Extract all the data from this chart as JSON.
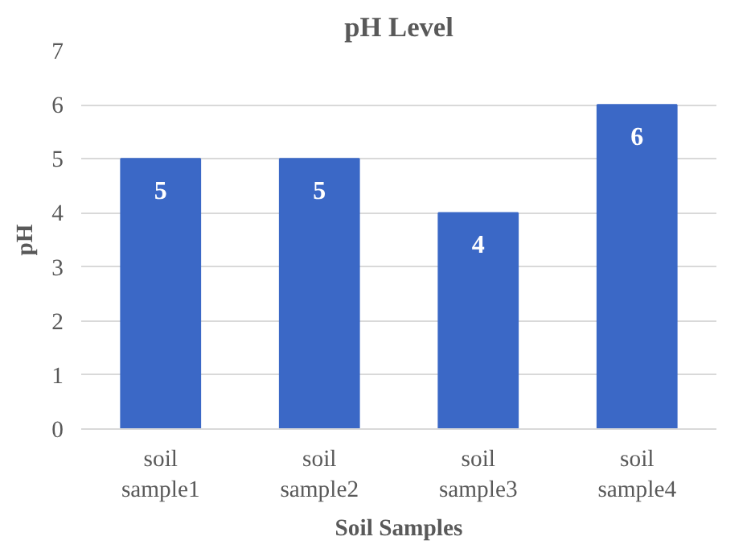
{
  "chart_data": {
    "type": "bar",
    "title": "pH Level",
    "xlabel": "Soil Samples",
    "ylabel": "pH",
    "categories": [
      "soil sample1",
      "soil sample2",
      "soil sample3",
      "soil sample4"
    ],
    "values": [
      5,
      5,
      4,
      6
    ],
    "color": "#3b68c6",
    "ylim": [
      0,
      7
    ],
    "yticks": [
      0,
      1,
      2,
      3,
      4,
      5,
      6,
      7
    ],
    "grid": "y",
    "data_labels": true
  }
}
